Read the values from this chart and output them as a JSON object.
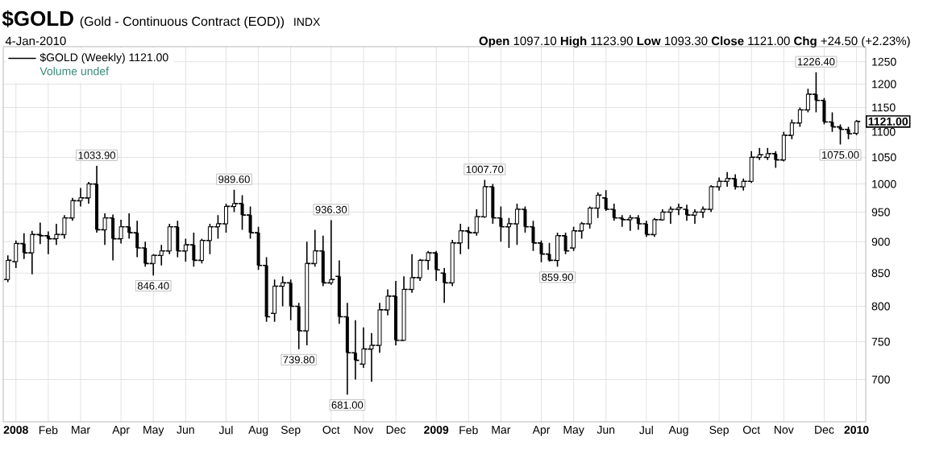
{
  "chart_data": {
    "type": "candlestick",
    "title": "$GOLD",
    "subtitle": "4-Jan-2010",
    "annotations": [
      "(Gold - Continuous Contract (EOD))",
      "INDX",
      "**Open** 1097.10 **High** 1123.90 **Low** 1093.30 **Close** 1121.00 **Chg** +24.50 (+2.23%)",
      "Volume undef",
      {
        "text": "1033.90",
        "x": "2008-03-17",
        "y": 1033.9
      },
      {
        "text": "846.40",
        "x": "2008-05-05",
        "y": 846.4
      },
      {
        "text": "989.60",
        "x": "2008-07-14",
        "y": 989.6
      },
      {
        "text": "739.80",
        "x": "2008-09-08",
        "y": 739.8
      },
      {
        "text": "936.30",
        "x": "2008-10-06",
        "y": 936.3
      },
      {
        "text": "681.00",
        "x": "2008-10-20",
        "y": 681
      },
      {
        "text": "1007.70",
        "x": "2009-02-16",
        "y": 1007.7
      },
      {
        "text": "859.90",
        "x": "2009-04-20",
        "y": 859.9
      },
      {
        "text": "1226.40",
        "x": "2009-11-30",
        "y": 1226.4
      },
      {
        "text": "1075.00",
        "x": "2009-12-21",
        "y": 1075
      },
      {
        "text": "1121.00",
        "x": "2010-01-04",
        "y": 1121
      }
    ],
    "x": [
      "2007-12-31",
      "2008-01-07",
      "2008-01-14",
      "2008-01-21",
      "2008-01-28",
      "2008-02-04",
      "2008-02-11",
      "2008-02-18",
      "2008-02-25",
      "2008-03-03",
      "2008-03-10",
      "2008-03-17",
      "2008-03-24",
      "2008-03-31",
      "2008-04-07",
      "2008-04-14",
      "2008-04-21",
      "2008-04-28",
      "2008-05-05",
      "2008-05-12",
      "2008-05-19",
      "2008-05-26",
      "2008-06-02",
      "2008-06-09",
      "2008-06-16",
      "2008-06-23",
      "2008-06-30",
      "2008-07-07",
      "2008-07-14",
      "2008-07-21",
      "2008-07-28",
      "2008-08-04",
      "2008-08-11",
      "2008-08-18",
      "2008-08-25",
      "2008-09-01",
      "2008-09-08",
      "2008-09-15",
      "2008-09-22",
      "2008-09-29",
      "2008-10-06",
      "2008-10-13",
      "2008-10-20",
      "2008-10-27",
      "2008-11-03",
      "2008-11-10",
      "2008-11-17",
      "2008-11-24",
      "2008-12-01",
      "2008-12-08",
      "2008-12-15",
      "2008-12-22",
      "2008-12-29",
      "2009-01-05",
      "2009-01-12",
      "2009-01-19",
      "2009-01-26",
      "2009-02-02",
      "2009-02-09",
      "2009-02-16",
      "2009-02-23",
      "2009-03-02",
      "2009-03-09",
      "2009-03-16",
      "2009-03-23",
      "2009-03-30",
      "2009-04-06",
      "2009-04-13",
      "2009-04-20",
      "2009-04-27",
      "2009-05-04",
      "2009-05-11",
      "2009-05-18",
      "2009-05-25",
      "2009-06-01",
      "2009-06-08",
      "2009-06-15",
      "2009-06-22",
      "2009-06-29",
      "2009-07-06",
      "2009-07-13",
      "2009-07-20",
      "2009-07-27",
      "2009-08-03",
      "2009-08-10",
      "2009-08-17",
      "2009-08-24",
      "2009-08-31",
      "2009-09-07",
      "2009-09-14",
      "2009-09-21",
      "2009-09-28",
      "2009-10-05",
      "2009-10-12",
      "2009-10-19",
      "2009-10-26",
      "2009-11-02",
      "2009-11-09",
      "2009-11-16",
      "2009-11-23",
      "2009-11-30",
      "2009-12-07",
      "2009-12-14",
      "2009-12-21",
      "2009-12-28",
      "2010-01-04"
    ],
    "series": [
      {
        "name": "$GOLD (Weekly) 1121.00",
        "color": "#000000",
        "ohlc": [
          [
            840,
            878,
            836,
            870
          ],
          [
            868,
            902,
            858,
            897
          ],
          [
            897,
            914,
            872,
            882
          ],
          [
            882,
            918,
            848,
            912
          ],
          [
            912,
            932,
            896,
            910
          ],
          [
            910,
            917,
            880,
            905
          ],
          [
            905,
            930,
            895,
            912
          ],
          [
            912,
            945,
            905,
            940
          ],
          [
            940,
            975,
            935,
            970
          ],
          [
            970,
            993,
            960,
            975
          ],
          [
            975,
            1004,
            965,
            1000
          ],
          [
            1000,
            1033.9,
            915,
            920
          ],
          [
            920,
            948,
            895,
            940
          ],
          [
            940,
            946,
            870,
            905
          ],
          [
            905,
            937,
            897,
            925
          ],
          [
            925,
            948,
            905,
            915
          ],
          [
            915,
            935,
            875,
            890
          ],
          [
            890,
            900,
            860,
            865
          ],
          [
            865,
            880,
            846.4,
            878
          ],
          [
            878,
            895,
            862,
            885
          ],
          [
            885,
            930,
            880,
            925
          ],
          [
            925,
            935,
            875,
            885
          ],
          [
            885,
            905,
            868,
            895
          ],
          [
            895,
            915,
            860,
            870
          ],
          [
            870,
            905,
            865,
            902
          ],
          [
            902,
            930,
            880,
            925
          ],
          [
            925,
            945,
            905,
            930
          ],
          [
            930,
            965,
            915,
            960
          ],
          [
            960,
            989.6,
            950,
            965
          ],
          [
            965,
            980,
            920,
            945
          ],
          [
            945,
            960,
            905,
            915
          ],
          [
            915,
            925,
            855,
            862
          ],
          [
            862,
            875,
            778,
            785
          ],
          [
            790,
            840,
            778,
            830
          ],
          [
            830,
            845,
            800,
            835
          ],
          [
            835,
            840,
            780,
            800
          ],
          [
            800,
            805,
            739.8,
            765
          ],
          [
            765,
            900,
            745,
            865
          ],
          [
            865,
            920,
            860,
            885
          ],
          [
            885,
            910,
            830,
            835
          ],
          [
            835,
            936.3,
            832,
            840
          ],
          [
            845,
            870,
            775,
            785
          ],
          [
            785,
            805,
            681,
            735
          ],
          [
            735,
            780,
            700,
            725
          ],
          [
            720,
            770,
            715,
            740
          ],
          [
            740,
            762,
            697,
            745
          ],
          [
            745,
            805,
            735,
            795
          ],
          [
            795,
            825,
            787,
            815
          ],
          [
            815,
            838,
            745,
            752
          ],
          [
            752,
            845,
            752,
            825
          ],
          [
            825,
            880,
            820,
            843
          ],
          [
            843,
            872,
            838,
            870
          ],
          [
            870,
            885,
            855,
            882
          ],
          [
            882,
            885,
            838,
            855
          ],
          [
            850,
            858,
            805,
            835
          ],
          [
            835,
            903,
            830,
            898
          ],
          [
            898,
            930,
            880,
            918
          ],
          [
            918,
            925,
            888,
            915
          ],
          [
            915,
            955,
            910,
            942
          ],
          [
            942,
            1007.7,
            940,
            995
          ],
          [
            995,
            1000,
            930,
            940
          ],
          [
            940,
            960,
            900,
            925
          ],
          [
            925,
            940,
            890,
            930
          ],
          [
            930,
            965,
            895,
            955
          ],
          [
            955,
            960,
            915,
            925
          ],
          [
            925,
            935,
            885,
            898
          ],
          [
            898,
            902,
            867,
            880
          ],
          [
            880,
            898,
            868,
            870
          ],
          [
            870,
            915,
            859.9,
            910
          ],
          [
            910,
            915,
            880,
            885
          ],
          [
            890,
            925,
            885,
            918
          ],
          [
            918,
            933,
            905,
            930
          ],
          [
            930,
            960,
            922,
            957
          ],
          [
            957,
            985,
            940,
            980
          ],
          [
            975,
            989,
            952,
            955
          ],
          [
            955,
            965,
            935,
            940
          ],
          [
            940,
            945,
            925,
            937
          ],
          [
            937,
            945,
            918,
            940
          ],
          [
            940,
            945,
            920,
            930
          ],
          [
            930,
            935,
            908,
            912
          ],
          [
            912,
            940,
            908,
            937
          ],
          [
            937,
            955,
            935,
            950
          ],
          [
            950,
            960,
            930,
            955
          ],
          [
            955,
            965,
            945,
            958
          ],
          [
            955,
            963,
            935,
            945
          ],
          [
            945,
            955,
            930,
            950
          ],
          [
            950,
            960,
            940,
            955
          ],
          [
            955,
            998,
            950,
            995
          ],
          [
            995,
            1012,
            988,
            1005
          ],
          [
            1005,
            1022,
            995,
            1010
          ],
          [
            1010,
            1018,
            990,
            995
          ],
          [
            995,
            1010,
            988,
            1005
          ],
          [
            1005,
            1062,
            1002,
            1050
          ],
          [
            1050,
            1068,
            1045,
            1055
          ],
          [
            1050,
            1068,
            1045,
            1057
          ],
          [
            1057,
            1062,
            1030,
            1045
          ],
          [
            1045,
            1100,
            1042,
            1093
          ],
          [
            1093,
            1125,
            1085,
            1118
          ],
          [
            1118,
            1150,
            1110,
            1145
          ],
          [
            1145,
            1190,
            1140,
            1178
          ],
          [
            1178,
            1226.4,
            1140,
            1165
          ],
          [
            1165,
            1170,
            1115,
            1120
          ],
          [
            1120,
            1140,
            1100,
            1110
          ],
          [
            1110,
            1115,
            1075,
            1105
          ],
          [
            1105,
            1110,
            1085,
            1096
          ],
          [
            1097.1,
            1123.9,
            1093.3,
            1121
          ]
        ]
      }
    ],
    "xlim": [
      "2007-12-27",
      "2010-01-12"
    ],
    "xticks": [
      {
        "value": "2008-01-07",
        "label": "2008"
      },
      {
        "value": "2008-02-04",
        "label": "Feb"
      },
      {
        "value": "2008-03-03",
        "label": "Mar"
      },
      {
        "value": "2008-04-07",
        "label": "Apr"
      },
      {
        "value": "2008-05-05",
        "label": "May"
      },
      {
        "value": "2008-06-02",
        "label": "Jun"
      },
      {
        "value": "2008-07-07",
        "label": "Jul"
      },
      {
        "value": "2008-08-04",
        "label": "Aug"
      },
      {
        "value": "2008-09-01",
        "label": "Sep"
      },
      {
        "value": "2008-10-06",
        "label": "Oct"
      },
      {
        "value": "2008-11-03",
        "label": "Nov"
      },
      {
        "value": "2008-12-01",
        "label": "Dec"
      },
      {
        "value": "2009-01-05",
        "label": "2009"
      },
      {
        "value": "2009-02-02",
        "label": "Feb"
      },
      {
        "value": "2009-03-02",
        "label": "Mar"
      },
      {
        "value": "2009-04-06",
        "label": "Apr"
      },
      {
        "value": "2009-05-04",
        "label": "May"
      },
      {
        "value": "2009-06-01",
        "label": "Jun"
      },
      {
        "value": "2009-07-06",
        "label": "Jul"
      },
      {
        "value": "2009-08-03",
        "label": "Aug"
      },
      {
        "value": "2009-09-07",
        "label": "Sep"
      },
      {
        "value": "2009-10-05",
        "label": "Oct"
      },
      {
        "value": "2009-11-02",
        "label": "Nov"
      },
      {
        "value": "2009-12-07",
        "label": "Dec"
      },
      {
        "value": "2010-01-04",
        "label": "2010"
      }
    ],
    "ylim": [
      648,
      1285
    ],
    "yticks": [
      700,
      750,
      800,
      850,
      900,
      950,
      1000,
      1050,
      1100,
      1150,
      1200,
      1250
    ],
    "log": "y",
    "grid": true,
    "legend": "top left"
  }
}
